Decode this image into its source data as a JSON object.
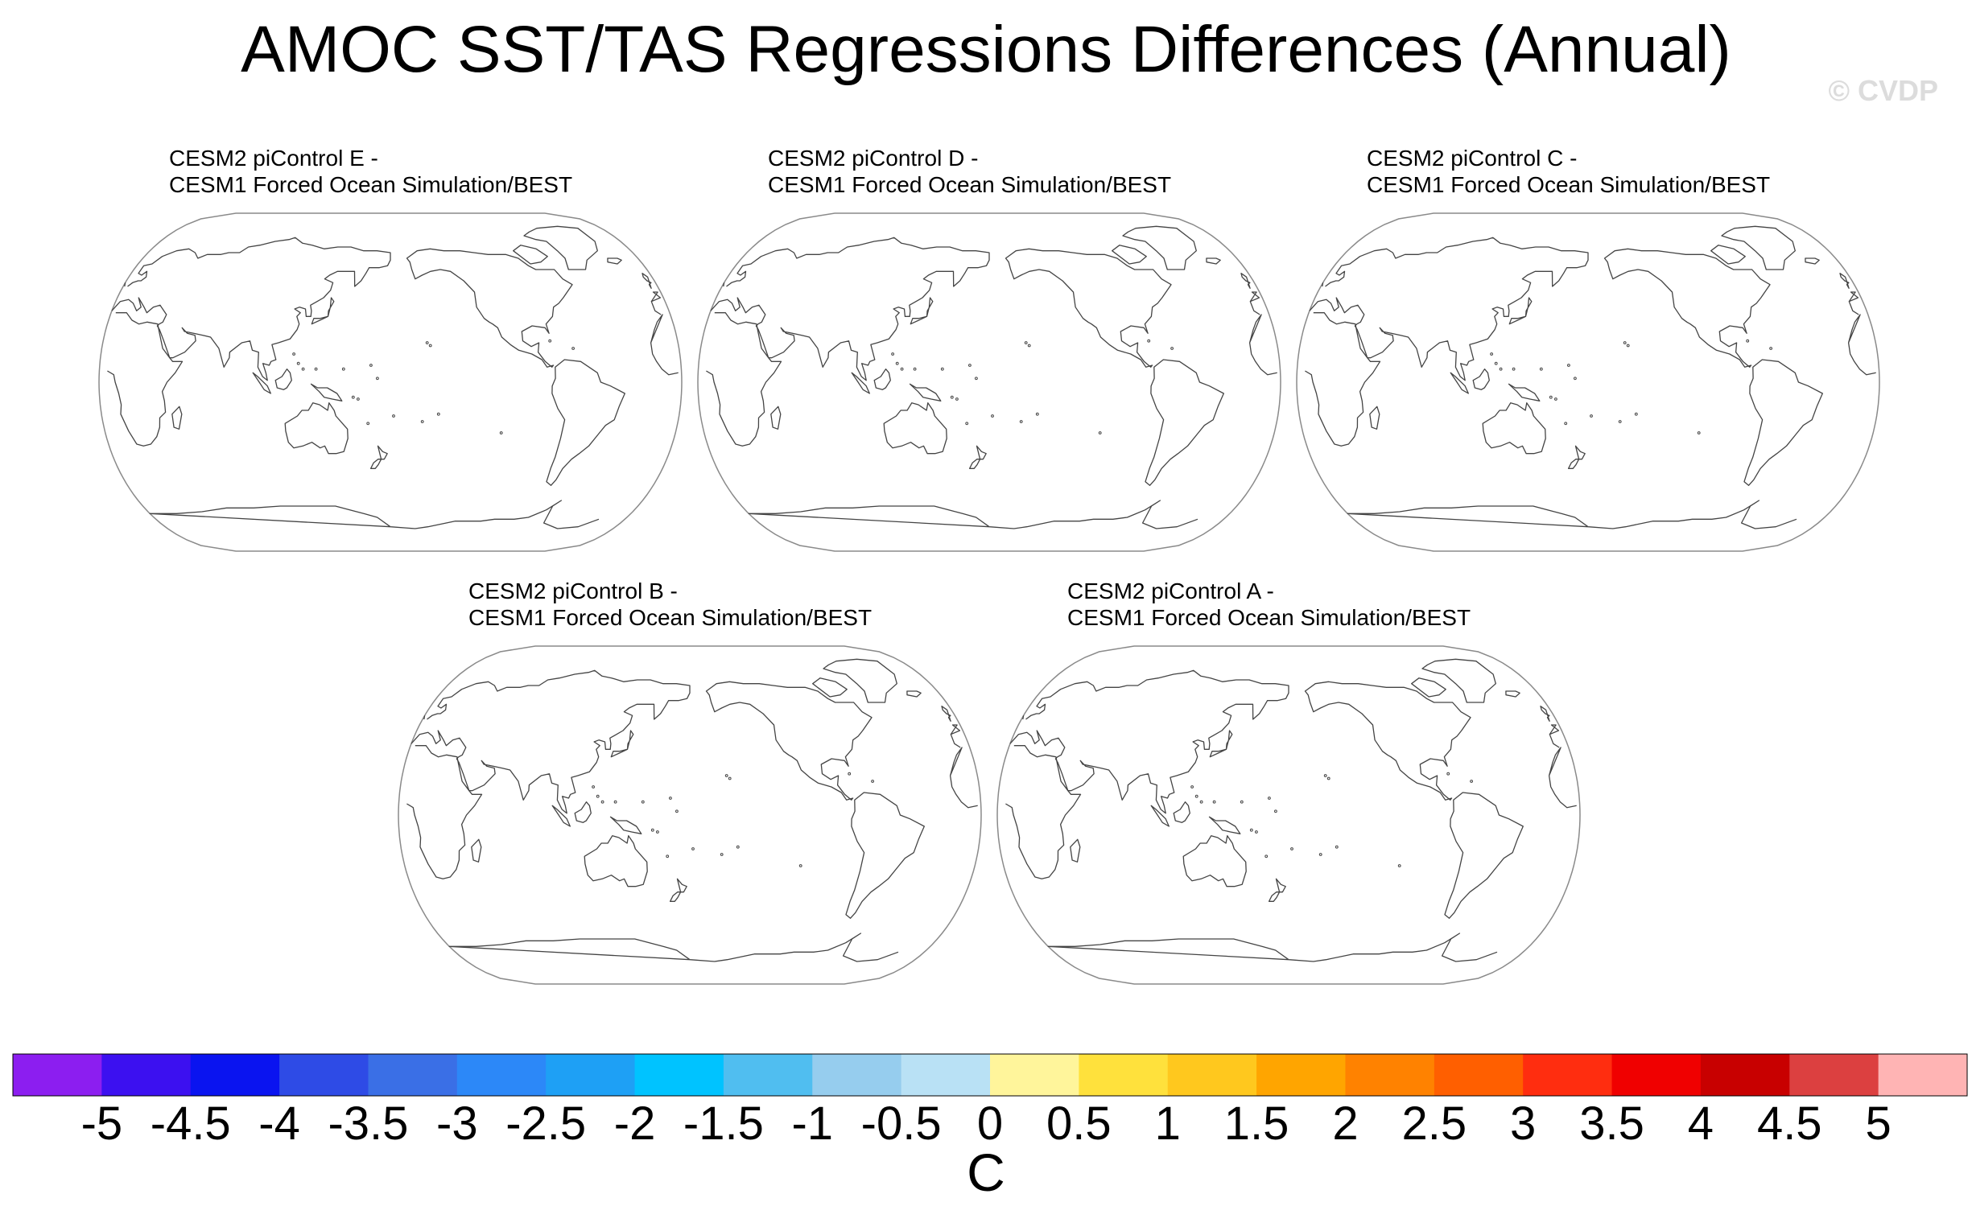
{
  "title": "AMOC SST/TAS Regressions Differences (Annual)",
  "watermark": "© CVDP",
  "panels": [
    {
      "line1": "CESM2 piControl E -",
      "line2": "CESM1 Forced Ocean Simulation/BEST"
    },
    {
      "line1": "CESM2 piControl D -",
      "line2": "CESM1 Forced Ocean Simulation/BEST"
    },
    {
      "line1": "CESM2 piControl C -",
      "line2": "CESM1 Forced Ocean Simulation/BEST"
    },
    {
      "line1": "CESM2 piControl B -",
      "line2": "CESM1 Forced Ocean Simulation/BEST"
    },
    {
      "line1": "CESM2 piControl A -",
      "line2": "CESM1 Forced Ocean Simulation/BEST"
    }
  ],
  "chart_data": {
    "type": "heatmap",
    "title": "AMOC SST/TAS Regressions Differences (Annual)",
    "projection": "Robinson, Pacific-centered",
    "fields_shown": "none (blank maps, coastlines only)",
    "colorbar": {
      "units": "C",
      "levels": [
        -5,
        -4.5,
        -4,
        -3.5,
        -3,
        -2.5,
        -2,
        -1.5,
        -1,
        -0.5,
        0,
        0.5,
        1,
        1.5,
        2,
        2.5,
        3,
        3.5,
        4,
        4.5,
        5
      ],
      "tick_labels": [
        "-5",
        "-4.5",
        "-4",
        "-3.5",
        "-3",
        "-2.5",
        "-2",
        "-1.5",
        "-1",
        "-0.5",
        "0",
        "0.5",
        "1",
        "1.5",
        "2",
        "2.5",
        "3",
        "3.5",
        "4",
        "4.5",
        "5"
      ],
      "colors": [
        "#8C1EF0",
        "#3C10F0",
        "#0A14F0",
        "#2E4BE6",
        "#3A6FE6",
        "#2C88F8",
        "#1EA0F5",
        "#00C3FF",
        "#50BEF0",
        "#96CDEE",
        "#B9E1F5",
        "#FFF59B",
        "#FFE13C",
        "#FFC81E",
        "#FFA500",
        "#FF8200",
        "#FF5F00",
        "#FF2D0F",
        "#F00000",
        "#C80000",
        "#DC4040",
        "#FFB4B4"
      ]
    }
  }
}
